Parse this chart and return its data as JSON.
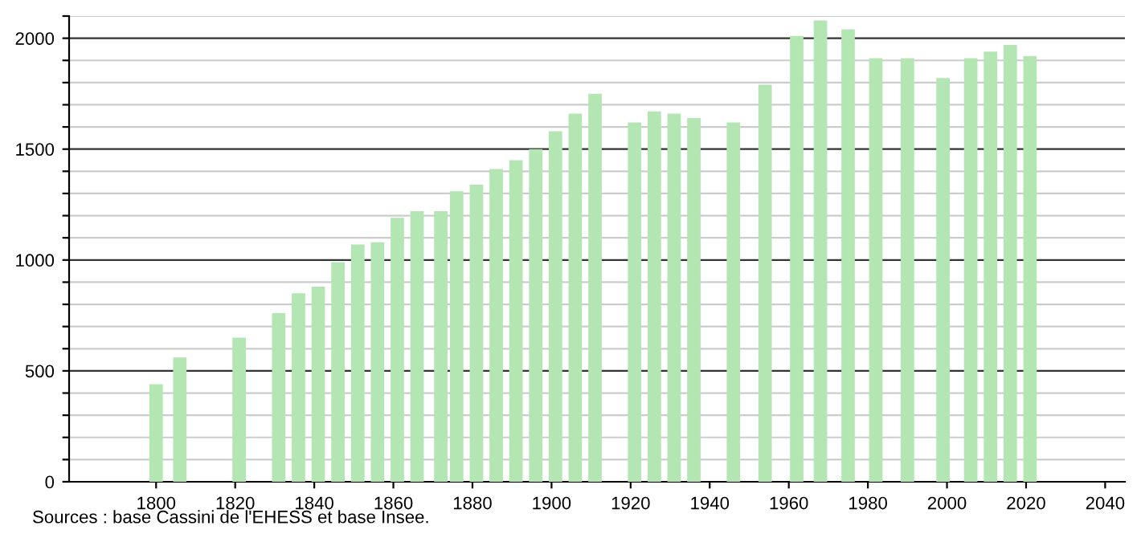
{
  "chart_data": {
    "type": "bar",
    "x": [
      1800,
      1806,
      1821,
      1831,
      1836,
      1841,
      1846,
      1851,
      1856,
      1861,
      1866,
      1872,
      1876,
      1881,
      1886,
      1891,
      1896,
      1901,
      1906,
      1911,
      1921,
      1926,
      1931,
      1936,
      1946,
      1954,
      1962,
      1968,
      1975,
      1982,
      1990,
      1999,
      2006,
      2011,
      2016,
      2021
    ],
    "values": [
      440,
      560,
      650,
      760,
      850,
      880,
      990,
      1070,
      1080,
      1190,
      1220,
      1220,
      1310,
      1340,
      1410,
      1450,
      1500,
      1580,
      1660,
      1750,
      1620,
      1670,
      1660,
      1640,
      1620,
      1790,
      2010,
      2080,
      2040,
      1910,
      1910,
      1820,
      1910,
      1940,
      1970,
      1920
    ],
    "color": "#b3e6b3",
    "xlim": [
      1778,
      2045
    ],
    "xticks": [
      1800,
      1820,
      1840,
      1860,
      1880,
      1900,
      1920,
      1940,
      1960,
      1980,
      2000,
      2020,
      2040
    ],
    "ylim": [
      0,
      2100
    ],
    "yticks": [
      0,
      {
        "value": 100,
        "label": null
      },
      {
        "value": 200,
        "label": null
      },
      {
        "value": 300,
        "label": null
      },
      {
        "value": 400,
        "label": null
      },
      500,
      {
        "value": 600,
        "label": null
      },
      {
        "value": 700,
        "label": null
      },
      {
        "value": 800,
        "label": null
      },
      {
        "value": 900,
        "label": null
      },
      1000,
      {
        "value": 1100,
        "label": null
      },
      {
        "value": 1200,
        "label": null
      },
      {
        "value": 1300,
        "label": null
      },
      {
        "value": 1400,
        "label": null
      },
      1500,
      {
        "value": 1600,
        "label": null
      },
      {
        "value": 1700,
        "label": null
      },
      {
        "value": 1800,
        "label": null
      },
      {
        "value": 1900,
        "label": null
      },
      2000,
      {
        "value": 2100,
        "label": null
      }
    ],
    "grid": "y",
    "annotations": [
      "Sources : base Cassini de l'EHESS et base Insee."
    ]
  }
}
